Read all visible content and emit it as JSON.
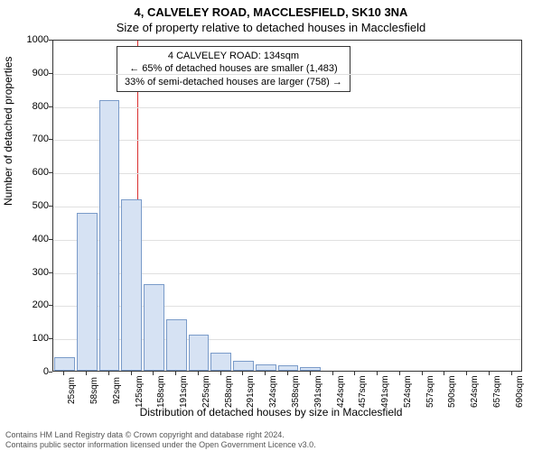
{
  "titles": {
    "line1": "4, CALVELEY ROAD, MACCLESFIELD, SK10 3NA",
    "line2": "Size of property relative to detached houses in Macclesfield"
  },
  "chart": {
    "type": "histogram",
    "ylabel": "Number of detached properties",
    "xlabel": "Distribution of detached houses by size in Macclesfield",
    "ylim": [
      0,
      1000
    ],
    "ytick_step": 100,
    "background_color": "#ffffff",
    "grid_color": "#e0e0e0",
    "bar_fill": "#d6e2f3",
    "bar_stroke": "#7a9bc9",
    "reference_line": {
      "value_sqm": 134,
      "color": "#d93030"
    },
    "x_categories": [
      "25sqm",
      "58sqm",
      "92sqm",
      "125sqm",
      "158sqm",
      "191sqm",
      "225sqm",
      "258sqm",
      "291sqm",
      "324sqm",
      "358sqm",
      "391sqm",
      "424sqm",
      "457sqm",
      "491sqm",
      "524sqm",
      "557sqm",
      "590sqm",
      "624sqm",
      "657sqm",
      "690sqm"
    ],
    "bars": [
      {
        "i": 0,
        "value": 40
      },
      {
        "i": 1,
        "value": 475
      },
      {
        "i": 2,
        "value": 815
      },
      {
        "i": 3,
        "value": 515
      },
      {
        "i": 4,
        "value": 260
      },
      {
        "i": 5,
        "value": 155
      },
      {
        "i": 6,
        "value": 110
      },
      {
        "i": 7,
        "value": 55
      },
      {
        "i": 8,
        "value": 30
      },
      {
        "i": 9,
        "value": 20
      },
      {
        "i": 10,
        "value": 17
      },
      {
        "i": 11,
        "value": 10
      },
      {
        "i": 12,
        "value": 0
      },
      {
        "i": 13,
        "value": 0
      },
      {
        "i": 14,
        "value": 0
      },
      {
        "i": 15,
        "value": 0
      },
      {
        "i": 16,
        "value": 0
      },
      {
        "i": 17,
        "value": 0
      },
      {
        "i": 18,
        "value": 0
      },
      {
        "i": 19,
        "value": 0
      },
      {
        "i": 20,
        "value": 0
      }
    ]
  },
  "callout": {
    "line1": "4 CALVELEY ROAD: 134sqm",
    "line2": "← 65% of detached houses are smaller (1,483)",
    "line3": "33% of semi-detached houses are larger (758) →"
  },
  "footer": {
    "line1": "Contains HM Land Registry data © Crown copyright and database right 2024.",
    "line2": "Contains public sector information licensed under the Open Government Licence v3.0."
  }
}
